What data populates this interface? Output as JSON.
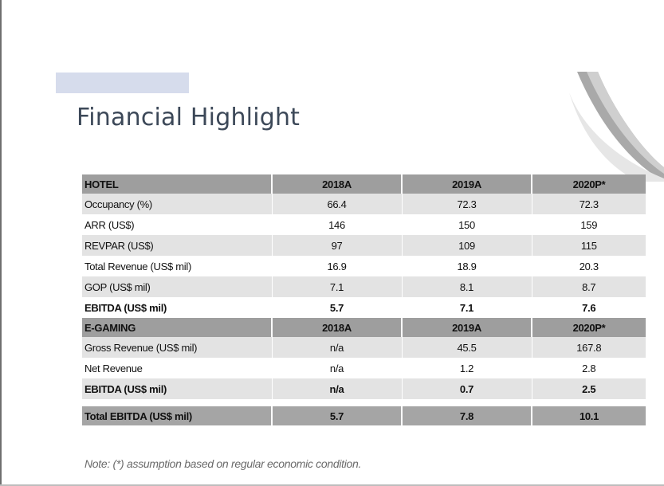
{
  "title": "Financial Highlight",
  "colors": {
    "accent_bar": "#d6dcec",
    "header_row": "#9e9e9e",
    "shaded_row": "#e3e3e3",
    "title_text": "#3c4858"
  },
  "hotel": {
    "header": [
      "HOTEL",
      "2018A",
      "2019A",
      "2020P*"
    ],
    "rows": [
      {
        "label": "Occupancy (%)",
        "values": [
          "66.4",
          "72.3",
          "72.3"
        ],
        "bold": false
      },
      {
        "label": "ARR (US$)",
        "values": [
          "146",
          "150",
          "159"
        ],
        "bold": false
      },
      {
        "label": "REVPAR (US$)",
        "values": [
          "97",
          "109",
          "115"
        ],
        "bold": false
      },
      {
        "label": "Total Revenue (US$ mil)",
        "values": [
          "16.9",
          "18.9",
          "20.3"
        ],
        "bold": false
      },
      {
        "label": "GOP (US$ mil)",
        "values": [
          "7.1",
          "8.1",
          "8.7"
        ],
        "bold": false
      },
      {
        "label": "EBITDA (US$ mil)",
        "values": [
          "5.7",
          "7.1",
          "7.6"
        ],
        "bold": true
      }
    ]
  },
  "egaming": {
    "header": [
      "E-GAMING",
      "2018A",
      "2019A",
      "2020P*"
    ],
    "rows": [
      {
        "label": "Gross Revenue (US$ mil)",
        "values": [
          "n/a",
          "45.5",
          "167.8"
        ],
        "bold": false
      },
      {
        "label": "Net Revenue",
        "values": [
          "n/a",
          "1.2",
          "2.8"
        ],
        "bold": false
      },
      {
        "label": "EBITDA (US$ mil)",
        "values": [
          "n/a",
          "0.7",
          "2.5"
        ],
        "bold": true
      }
    ]
  },
  "total": {
    "label": "Total EBITDA (US$ mil)",
    "values": [
      "5.7",
      "7.8",
      "10.1"
    ]
  },
  "note": "Note: (*) assumption based on regular economic condition."
}
